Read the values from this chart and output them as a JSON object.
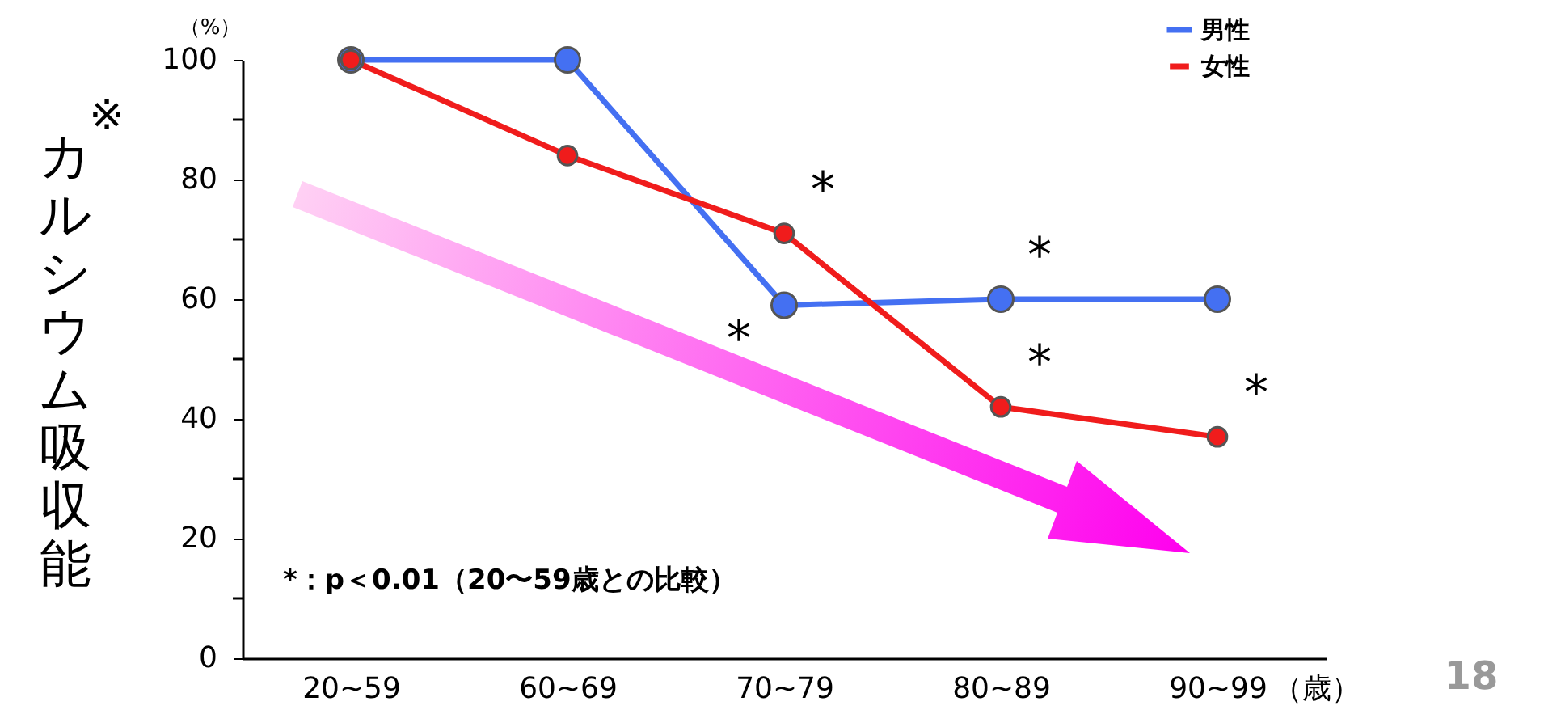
{
  "chart_data": {
    "type": "line",
    "ylabel": "カルシウム吸収能",
    "xlabel": "（歳）",
    "categories": [
      "20~59",
      "60~69",
      "70~79",
      "80~89",
      "90~99"
    ],
    "series": [
      {
        "name": "男性",
        "color": "#4470f2",
        "values": [
          100,
          100,
          59,
          60,
          60
        ]
      },
      {
        "name": "女性",
        "color": "#f01c1c",
        "values": [
          100,
          84,
          71,
          42,
          37
        ]
      }
    ],
    "ylim": [
      0,
      100
    ],
    "yticks": [
      0,
      {
        "value": 10,
        "label": null
      },
      20,
      {
        "value": 30,
        "label": null
      },
      40,
      {
        "value": 50,
        "label": null
      },
      60,
      {
        "value": 70,
        "label": null
      },
      80,
      {
        "value": 90,
        "label": null
      },
      100
    ],
    "annotations": [
      {
        "text": "*",
        "x": "70~79",
        "y": 59
      },
      {
        "text": "*",
        "x": "80~89",
        "y": 60
      },
      {
        "text": "*",
        "x": "70~79",
        "y": 71
      },
      {
        "text": "*",
        "x": "80~89",
        "y": 42
      },
      {
        "text": "*",
        "x": "90~99",
        "y": 37
      },
      "*：p＜0.01（20〜59歳との比較）",
      "※",
      "（%）",
      "18"
    ],
    "grid": false,
    "legend": "top right",
    "marker": "circle",
    "line_style": "solid"
  }
}
